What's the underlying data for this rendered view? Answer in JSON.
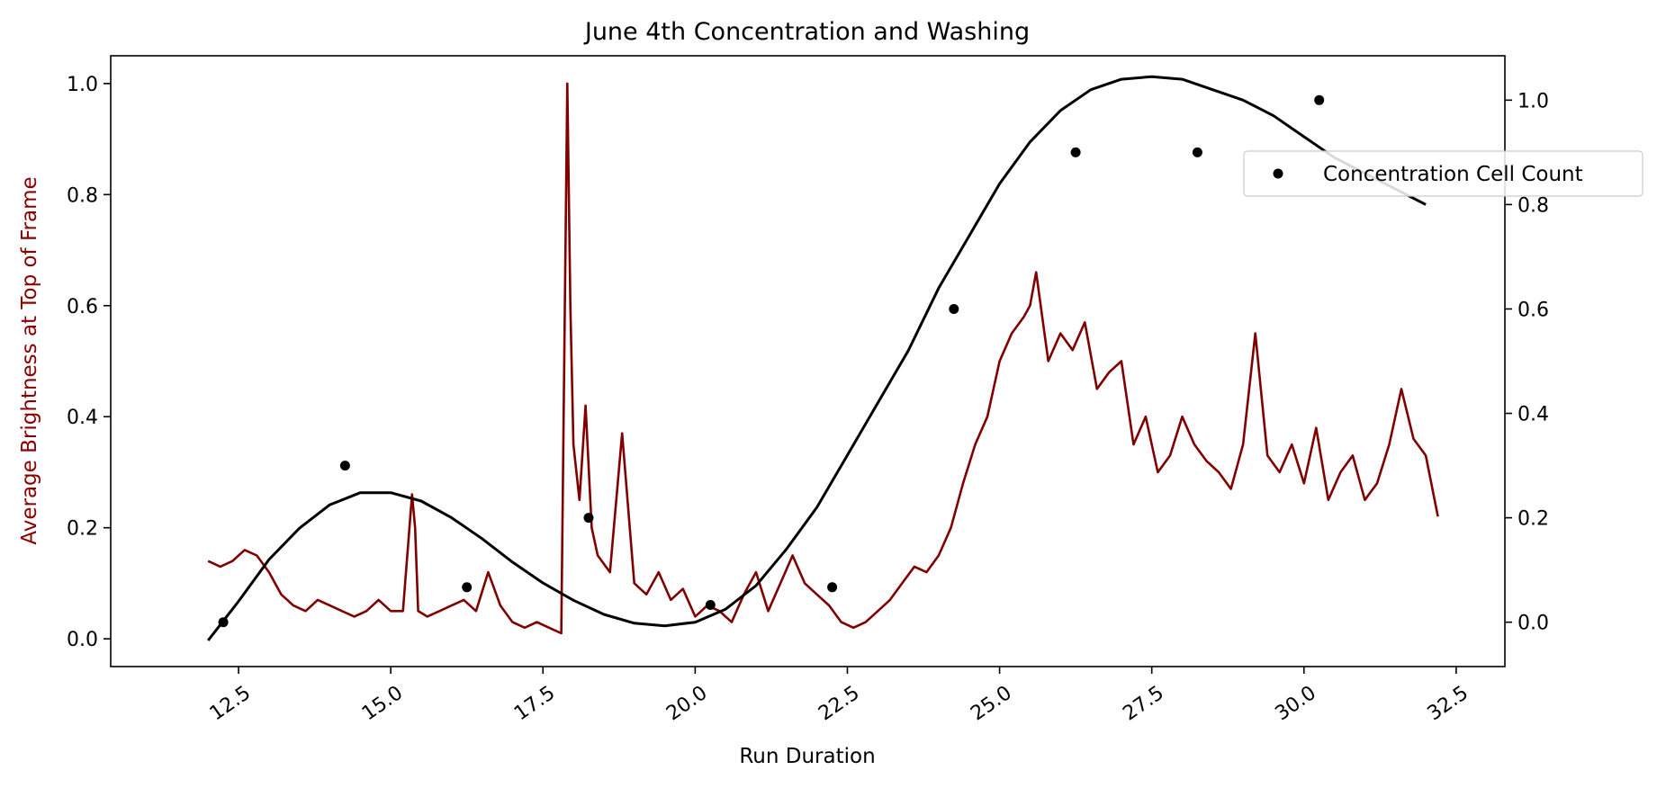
{
  "colors": {
    "brightness_line": "#800000",
    "fit_curve": "#000000",
    "points": "#000000",
    "y_left_label": "#8b0000",
    "axis": "#000000"
  },
  "chart_data": {
    "type": "line",
    "title": "June 4th Concentration and Washing",
    "xlabel": "Run Duration",
    "ylabel_left": "Average Brightness at Top of Frame",
    "ylabel_right": "",
    "xlim": [
      10.4,
      33.3
    ],
    "ylim_left": [
      -0.05,
      1.05
    ],
    "ylim_right": [
      -0.085,
      1.085
    ],
    "x_ticks": [
      12.5,
      15.0,
      17.5,
      20.0,
      22.5,
      25.0,
      27.5,
      30.0,
      32.5
    ],
    "x_tick_labels": [
      "12.5",
      "15.0",
      "17.5",
      "20.0",
      "22.5",
      "25.0",
      "27.5",
      "30.0",
      "32.5"
    ],
    "y_left_ticks": [
      0.0,
      0.2,
      0.4,
      0.6,
      0.8,
      1.0
    ],
    "y_left_tick_labels": [
      "0.0",
      "0.2",
      "0.4",
      "0.6",
      "0.8",
      "1.0"
    ],
    "y_right_ticks": [
      0.0,
      0.2,
      0.4,
      0.6,
      0.8,
      1.0
    ],
    "y_right_tick_labels": [
      "0.0",
      "0.2",
      "0.4",
      "0.6",
      "0.8",
      "1.0"
    ],
    "legend": {
      "placement": "upper-right",
      "entries": [
        "Concentration Cell Count"
      ]
    },
    "series": [
      {
        "axis": "left",
        "style": "line",
        "x": [
          12.0,
          12.2,
          12.4,
          12.6,
          12.8,
          13.0,
          13.2,
          13.4,
          13.6,
          13.8,
          14.0,
          14.2,
          14.4,
          14.6,
          14.8,
          15.0,
          15.2,
          15.35,
          15.4,
          15.45,
          15.6,
          15.8,
          16.0,
          16.2,
          16.4,
          16.6,
          16.8,
          17.0,
          17.2,
          17.4,
          17.6,
          17.8,
          17.85,
          17.9,
          17.95,
          18.0,
          18.1,
          18.2,
          18.3,
          18.4,
          18.6,
          18.8,
          19.0,
          19.2,
          19.4,
          19.6,
          19.8,
          20.0,
          20.2,
          20.4,
          20.6,
          20.8,
          21.0,
          21.2,
          21.4,
          21.6,
          21.8,
          22.0,
          22.2,
          22.4,
          22.6,
          22.8,
          23.0,
          23.2,
          23.4,
          23.6,
          23.8,
          24.0,
          24.2,
          24.4,
          24.6,
          24.8,
          25.0,
          25.2,
          25.4,
          25.5,
          25.6,
          25.8,
          26.0,
          26.2,
          26.4,
          26.6,
          26.8,
          27.0,
          27.2,
          27.4,
          27.6,
          27.8,
          28.0,
          28.2,
          28.4,
          28.6,
          28.8,
          29.0,
          29.2,
          29.4,
          29.6,
          29.8,
          30.0,
          30.2,
          30.4,
          30.6,
          30.8,
          31.0,
          31.2,
          31.4,
          31.6,
          31.8,
          32.0,
          32.2
        ],
        "y": [
          0.14,
          0.13,
          0.14,
          0.16,
          0.15,
          0.12,
          0.08,
          0.06,
          0.05,
          0.07,
          0.06,
          0.05,
          0.04,
          0.05,
          0.07,
          0.05,
          0.05,
          0.26,
          0.2,
          0.05,
          0.04,
          0.05,
          0.06,
          0.07,
          0.05,
          0.12,
          0.06,
          0.03,
          0.02,
          0.03,
          0.02,
          0.01,
          0.5,
          1.0,
          0.6,
          0.35,
          0.25,
          0.42,
          0.2,
          0.15,
          0.12,
          0.37,
          0.1,
          0.08,
          0.12,
          0.07,
          0.09,
          0.04,
          0.06,
          0.05,
          0.03,
          0.08,
          0.12,
          0.05,
          0.1,
          0.15,
          0.1,
          0.08,
          0.06,
          0.03,
          0.02,
          0.03,
          0.05,
          0.07,
          0.1,
          0.13,
          0.12,
          0.15,
          0.2,
          0.28,
          0.35,
          0.4,
          0.5,
          0.55,
          0.58,
          0.6,
          0.66,
          0.5,
          0.55,
          0.52,
          0.57,
          0.45,
          0.48,
          0.5,
          0.35,
          0.4,
          0.3,
          0.33,
          0.4,
          0.35,
          0.32,
          0.3,
          0.27,
          0.35,
          0.55,
          0.33,
          0.3,
          0.35,
          0.28,
          0.38,
          0.25,
          0.3,
          0.33,
          0.25,
          0.28,
          0.35,
          0.45,
          0.36,
          0.33,
          0.22
        ],
        "name": ""
      },
      {
        "axis": "right",
        "style": "line",
        "x": [
          12.0,
          12.5,
          13.0,
          13.5,
          14.0,
          14.5,
          15.0,
          15.5,
          16.0,
          16.5,
          17.0,
          17.5,
          18.0,
          18.5,
          19.0,
          19.5,
          20.0,
          20.5,
          21.0,
          21.5,
          22.0,
          22.5,
          23.0,
          23.5,
          24.0,
          24.5,
          25.0,
          25.5,
          26.0,
          26.5,
          27.0,
          27.5,
          28.0,
          28.5,
          29.0,
          29.5,
          30.0,
          30.5,
          31.0,
          31.5,
          32.0
        ],
        "y": [
          -0.035,
          0.04,
          0.12,
          0.18,
          0.225,
          0.248,
          0.248,
          0.232,
          0.2,
          0.16,
          0.115,
          0.075,
          0.042,
          0.015,
          -0.002,
          -0.007,
          0.0,
          0.025,
          0.07,
          0.14,
          0.22,
          0.32,
          0.42,
          0.52,
          0.64,
          0.74,
          0.84,
          0.92,
          0.98,
          1.02,
          1.04,
          1.045,
          1.04,
          1.02,
          1.0,
          0.97,
          0.93,
          0.89,
          0.86,
          0.83,
          0.8
        ],
        "name": ""
      },
      {
        "axis": "right",
        "style": "scatter",
        "name": "Concentration Cell Count",
        "x": [
          12.25,
          14.25,
          16.25,
          18.25,
          20.25,
          22.25,
          24.25,
          26.25,
          28.25,
          30.25
        ],
        "y": [
          0.0,
          0.3,
          0.067,
          0.2,
          0.033,
          0.067,
          0.6,
          0.9,
          0.9,
          1.0
        ]
      }
    ]
  }
}
